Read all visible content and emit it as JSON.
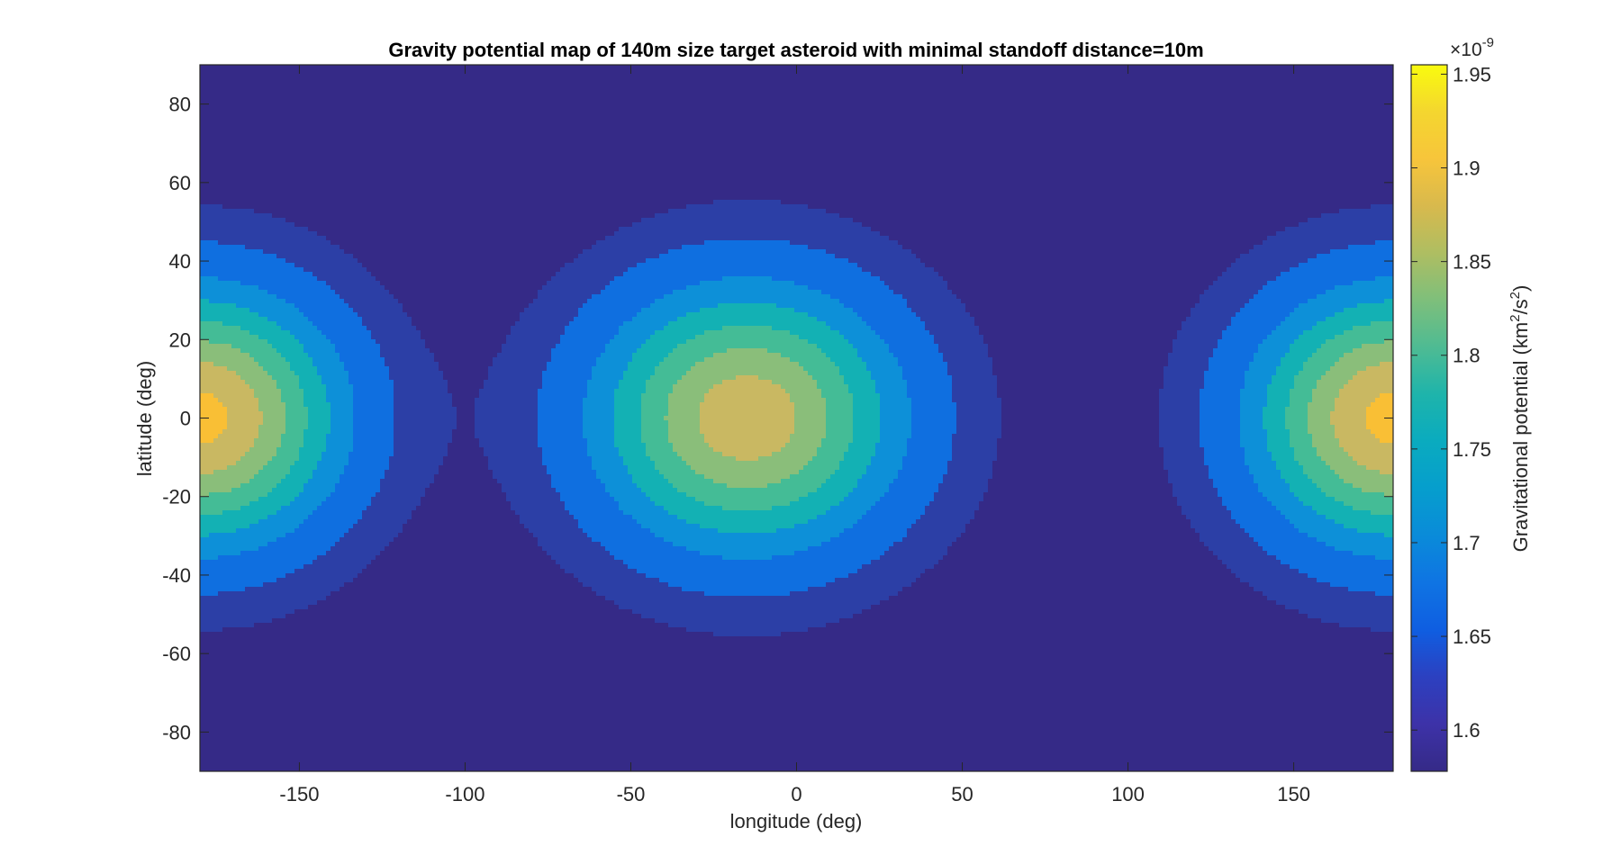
{
  "chart_data": {
    "type": "contour",
    "title": "Gravity potential map of 140m size target asteroid with minimal standoff distance=10m",
    "xlabel": "longitude (deg)",
    "ylabel": "latitude (deg)",
    "xlim": [
      -180,
      180
    ],
    "ylim": [
      -90,
      90
    ],
    "xticks": [
      -150,
      -100,
      -50,
      0,
      50,
      100,
      150
    ],
    "yticks": [
      -80,
      -60,
      -40,
      -20,
      0,
      20,
      40,
      60,
      80
    ],
    "colorbar": {
      "label_prefix": "Gravitational potential (km",
      "label_sup1": "2",
      "label_mid": "/s",
      "label_sup2": "2",
      "label_suffix": ")",
      "exponent_base": "×10",
      "exponent": "-9",
      "range": [
        1.578,
        1.955
      ],
      "ticks": [
        "1.6",
        "1.65",
        "1.7",
        "1.75",
        "1.8",
        "1.85",
        "1.9",
        "1.95"
      ],
      "tick_values": [
        1.6,
        1.65,
        1.7,
        1.75,
        1.8,
        1.85,
        1.9,
        1.95
      ]
    },
    "model": {
      "base": 1.585,
      "peaks": [
        {
          "lon": -15,
          "lat": 0,
          "amp": 0.276,
          "sig_lon": 33,
          "sig_lat": 24
        },
        {
          "lon": -180,
          "lat": 0,
          "amp": 0.302,
          "sig_lon": 30,
          "sig_lat": 23
        },
        {
          "lon": 180,
          "lat": 0,
          "amp": 0.302,
          "sig_lon": 30,
          "sig_lat": 23
        }
      ]
    },
    "contour_levels": [
      1.585,
      1.604,
      1.63,
      1.675,
      1.715,
      1.755,
      1.795,
      1.835,
      1.875
    ],
    "level_colors": [
      "#352a87",
      "#2c3fa6",
      "#0f6fe0",
      "#0d90d8",
      "#13b1b4",
      "#44bc96",
      "#8abe7a",
      "#c9b862",
      "#f9bf35"
    ],
    "colormap": [
      "#352a87",
      "#3d32a8",
      "#2c40c0",
      "#0f5ee1",
      "#0f74e3",
      "#0a8bd9",
      "#069ecd",
      "#0aabbf",
      "#1eb4ab",
      "#4ebb93",
      "#7ebf7b",
      "#aebe62",
      "#d8b94d",
      "#f7c53b",
      "#f4d62f",
      "#f9fb0e"
    ]
  }
}
